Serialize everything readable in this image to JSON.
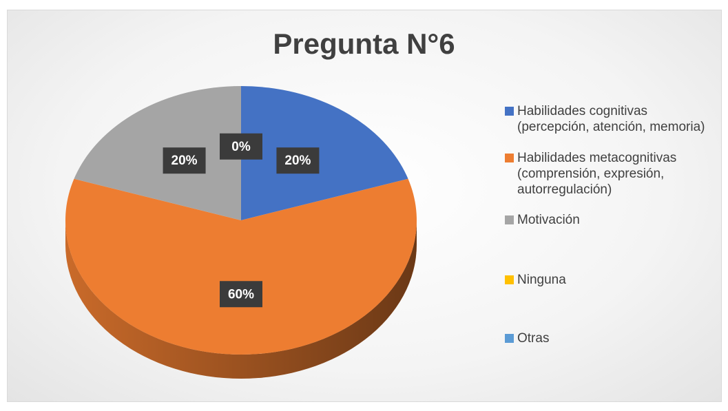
{
  "chart_data": {
    "type": "pie",
    "title": "Pregunta N°6",
    "categories": [
      "Habilidades cognitivas (percepción, atención, memoria)",
      "Habilidades metacognitivas (comprensión, expresión, autorregulación)",
      "Motivación",
      "Ninguna",
      "Otras"
    ],
    "values": [
      20,
      60,
      20,
      0,
      0
    ],
    "value_labels": [
      "20%",
      "60%",
      "20%",
      "0%",
      null
    ],
    "colors": [
      "#4472c4",
      "#ed7d31",
      "#a5a5a5",
      "#ffc000",
      "#5b9bd5"
    ],
    "legend": "right"
  }
}
